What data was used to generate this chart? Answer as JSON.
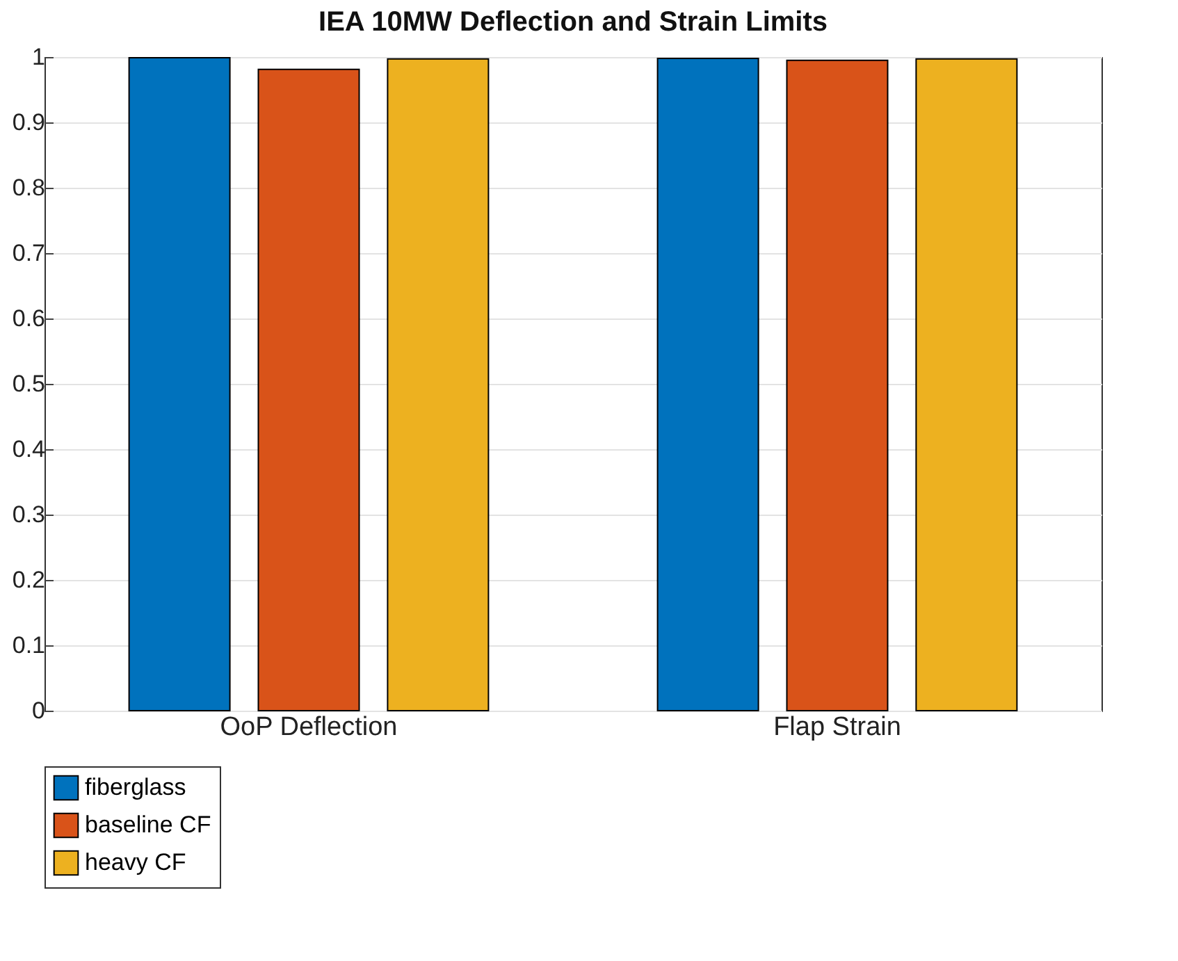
{
  "chart_data": {
    "type": "bar",
    "title": "IEA 10MW Deflection and Strain Limits",
    "categories": [
      "OoP Deflection",
      "Flap Strain"
    ],
    "series": [
      {
        "name": "fiberglass",
        "color": "#0072bd",
        "values": [
          0.999,
          0.998
        ]
      },
      {
        "name": "baseline CF",
        "color": "#d95319",
        "values": [
          0.981,
          0.995
        ]
      },
      {
        "name": "heavy CF",
        "color": "#edb120",
        "values": [
          0.997,
          0.997
        ]
      }
    ],
    "ylim": [
      0,
      1
    ],
    "yticks": [
      0,
      0.1,
      0.2,
      0.3,
      0.4,
      0.5,
      0.6,
      0.7,
      0.8,
      0.9,
      1
    ],
    "grid": "y",
    "legend": "bottom left"
  }
}
